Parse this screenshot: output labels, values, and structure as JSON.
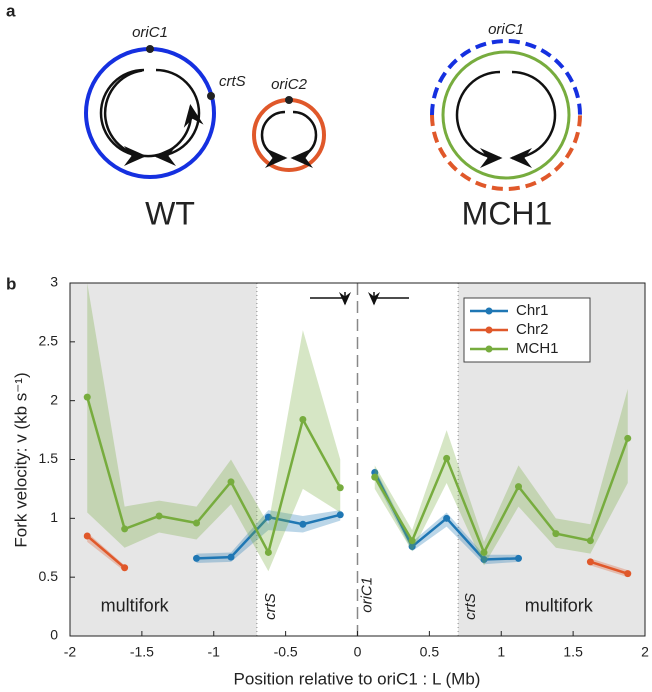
{
  "panel_a": {
    "panel_label": "a",
    "wt": {
      "label": "WT",
      "ori1": "oriC1",
      "crt": "crtS",
      "ori2": "oriC2"
    },
    "mch": {
      "label": "MCH1",
      "ori": "oriC1"
    }
  },
  "chart_data": {
    "type": "line",
    "panel_label": "b",
    "xlabel": "Position relative to oriC1 : L (Mb)",
    "ylabel": "Fork velocity: v (kb s⁻¹)",
    "xlim": [
      -2,
      2
    ],
    "ylim": [
      0,
      3
    ],
    "xticks": [
      -2,
      -1.5,
      -1,
      -0.5,
      0,
      0.5,
      1,
      1.5,
      2
    ],
    "yticks": [
      0,
      0.5,
      1,
      1.5,
      2,
      2.5,
      3
    ],
    "shaded_regions": [
      [
        -2,
        -0.7
      ],
      [
        0.7,
        2
      ]
    ],
    "dotted_lines": [
      -0.7,
      0.7
    ],
    "dashed_lines": [
      0
    ],
    "annotations": [
      {
        "text": "multifork",
        "x": -1.55,
        "y": 0.25
      },
      {
        "text": "multifork",
        "x": 1.4,
        "y": 0.25
      },
      {
        "text": "crtS",
        "x": -0.6,
        "y": 0.25,
        "rotated": true
      },
      {
        "text": "oriC1",
        "x": 0.07,
        "y": 0.35,
        "rotated": true
      },
      {
        "text": "crtS",
        "x": 0.79,
        "y": 0.25,
        "rotated": true
      }
    ],
    "legend": "upper right",
    "series": [
      {
        "name": "Chr1",
        "color": "#1f77b4",
        "x": [
          -1.12,
          -0.88,
          -0.62,
          -0.38,
          -0.12,
          null,
          0.12,
          0.38,
          0.62,
          0.88,
          1.12
        ],
        "values": [
          0.66,
          0.67,
          1.01,
          0.95,
          1.03,
          null,
          1.39,
          0.76,
          1.0,
          0.65,
          0.66
        ],
        "upper": [
          0.7,
          0.71,
          1.07,
          1.02,
          1.07,
          null,
          1.43,
          0.8,
          1.05,
          0.69,
          0.69
        ],
        "lower": [
          0.62,
          0.63,
          0.9,
          0.88,
          0.98,
          null,
          1.33,
          0.72,
          0.93,
          0.61,
          0.63
        ]
      },
      {
        "name": "Chr2",
        "color": "#e0582a",
        "x": [
          -1.88,
          -1.62,
          null,
          1.62,
          1.88
        ],
        "values": [
          0.85,
          0.58,
          null,
          0.63,
          0.53
        ],
        "upper": [
          0.88,
          0.6,
          null,
          0.66,
          0.56
        ],
        "lower": [
          0.8,
          0.55,
          null,
          0.6,
          0.5
        ]
      },
      {
        "name": "MCH1",
        "color": "#77ac3e",
        "x": [
          -1.88,
          -1.62,
          -1.38,
          -1.12,
          -0.88,
          -0.62,
          -0.38,
          -0.12,
          null,
          0.12,
          0.38,
          0.62,
          0.88,
          1.12,
          1.38,
          1.62,
          1.88
        ],
        "values": [
          2.03,
          0.91,
          1.02,
          0.96,
          1.31,
          0.71,
          1.84,
          1.26,
          null,
          1.35,
          0.81,
          1.51,
          0.71,
          1.27,
          0.87,
          0.81,
          1.68
        ],
        "upper": [
          3.0,
          1.1,
          1.15,
          1.1,
          1.5,
          0.95,
          2.6,
          1.5,
          null,
          1.45,
          0.9,
          1.75,
          0.8,
          1.45,
          1.0,
          0.95,
          2.1
        ],
        "lower": [
          1.05,
          0.75,
          0.88,
          0.82,
          1.12,
          0.55,
          1.25,
          1.05,
          null,
          1.25,
          0.72,
          1.3,
          0.6,
          1.1,
          0.75,
          0.7,
          1.3
        ]
      }
    ]
  }
}
